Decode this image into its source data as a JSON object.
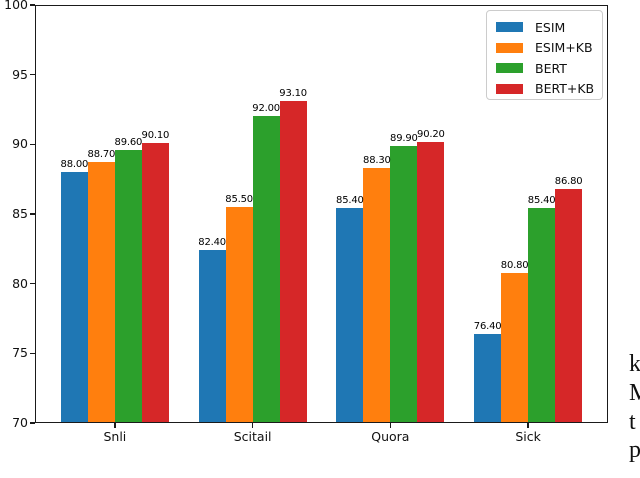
{
  "chart_data": {
    "type": "bar",
    "title": "",
    "xlabel": "",
    "ylabel": "",
    "categories": [
      "Snli",
      "Scitail",
      "Quora",
      "Sick"
    ],
    "series": [
      {
        "name": "ESIM",
        "color": "#1f77b4",
        "values": [
          88.0,
          82.4,
          85.4,
          76.4
        ]
      },
      {
        "name": "ESIM+KB",
        "color": "#ff7f0e",
        "values": [
          88.7,
          85.5,
          88.3,
          80.8
        ]
      },
      {
        "name": "BERT",
        "color": "#2ca02c",
        "values": [
          89.6,
          92.0,
          89.9,
          85.4
        ]
      },
      {
        "name": "BERT+KB",
        "color": "#d62728",
        "values": [
          90.1,
          93.1,
          90.2,
          86.8
        ]
      }
    ],
    "ylim": [
      70,
      100
    ],
    "yticks": [
      70,
      75,
      80,
      85,
      90,
      95,
      100
    ],
    "grid": false,
    "bar_value_labels": true,
    "value_label_decimals": 2,
    "legend_position": "upper right",
    "axis_color": "#1a1a1a"
  },
  "page": {
    "right_edge_text_fragments": [
      "k",
      "M",
      "t",
      "p"
    ]
  }
}
